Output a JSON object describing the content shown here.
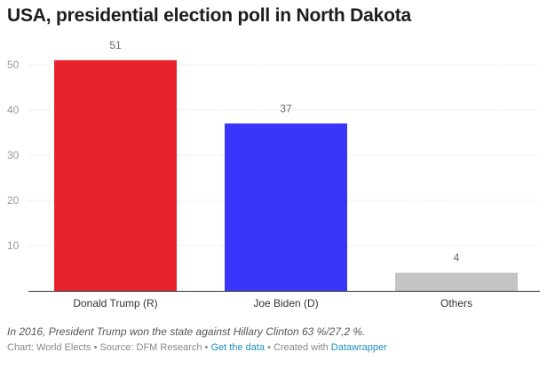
{
  "title": "USA, presidential election poll in North Dakota",
  "note": "In 2016, President Trump won the state against Hillary Clinton 63 %/27,2 %.",
  "footer": {
    "chart_prefix": "Chart: ",
    "chart_author": "World Elects",
    "sep1": " • Source: ",
    "source": "DFM Research",
    "sep2": " • ",
    "get_data": "Get the data",
    "sep3": " • Created with ",
    "created_with": "Datawrapper"
  },
  "colors": {
    "Donald Trump (R)": "#e8232b",
    "Joe Biden (D)": "#3a35fb",
    "Others": "#c4c4c4"
  },
  "chart_data": {
    "type": "bar",
    "categories": [
      "Donald Trump (R)",
      "Joe Biden (D)",
      "Others"
    ],
    "values": [
      51,
      37,
      4
    ],
    "ylim": [
      0,
      55
    ],
    "yticks": [
      10,
      20,
      30,
      40,
      50
    ],
    "grid": true,
    "title": "USA, presidential election poll in North Dakota",
    "xlabel": "",
    "ylabel": ""
  }
}
